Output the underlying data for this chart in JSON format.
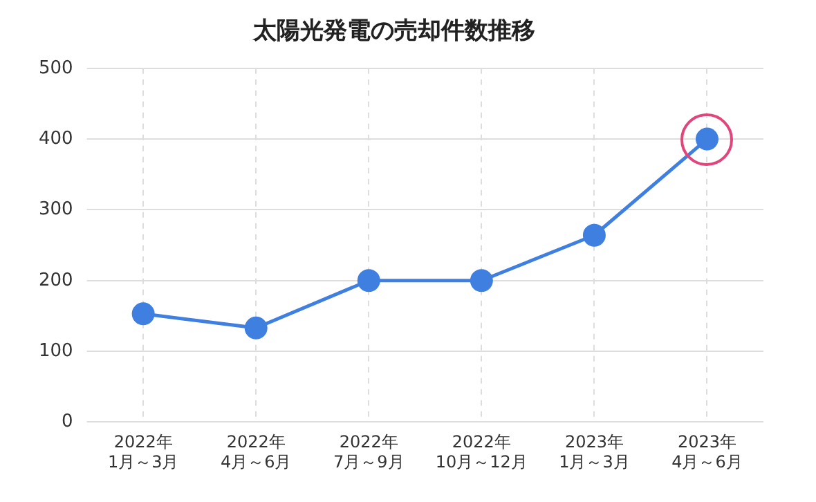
{
  "chart_data": {
    "type": "line",
    "title": "太陽光発電の売却件数推移",
    "categories": [
      "2022年\n1月～3月",
      "2022年\n4月～6月",
      "2022年\n7月～9月",
      "2022年\n10月～12月",
      "2023年\n1月～3月",
      "2023年\n4月～6月"
    ],
    "series": [
      {
        "color": "#3f7fe0",
        "values": [
          153,
          133,
          200,
          200,
          264,
          400
        ]
      }
    ],
    "ylim": [
      0,
      500
    ],
    "yticks": [
      0,
      100,
      200,
      300,
      400,
      500
    ],
    "grid": true,
    "marker": "circle",
    "line_style": "solid"
  }
}
